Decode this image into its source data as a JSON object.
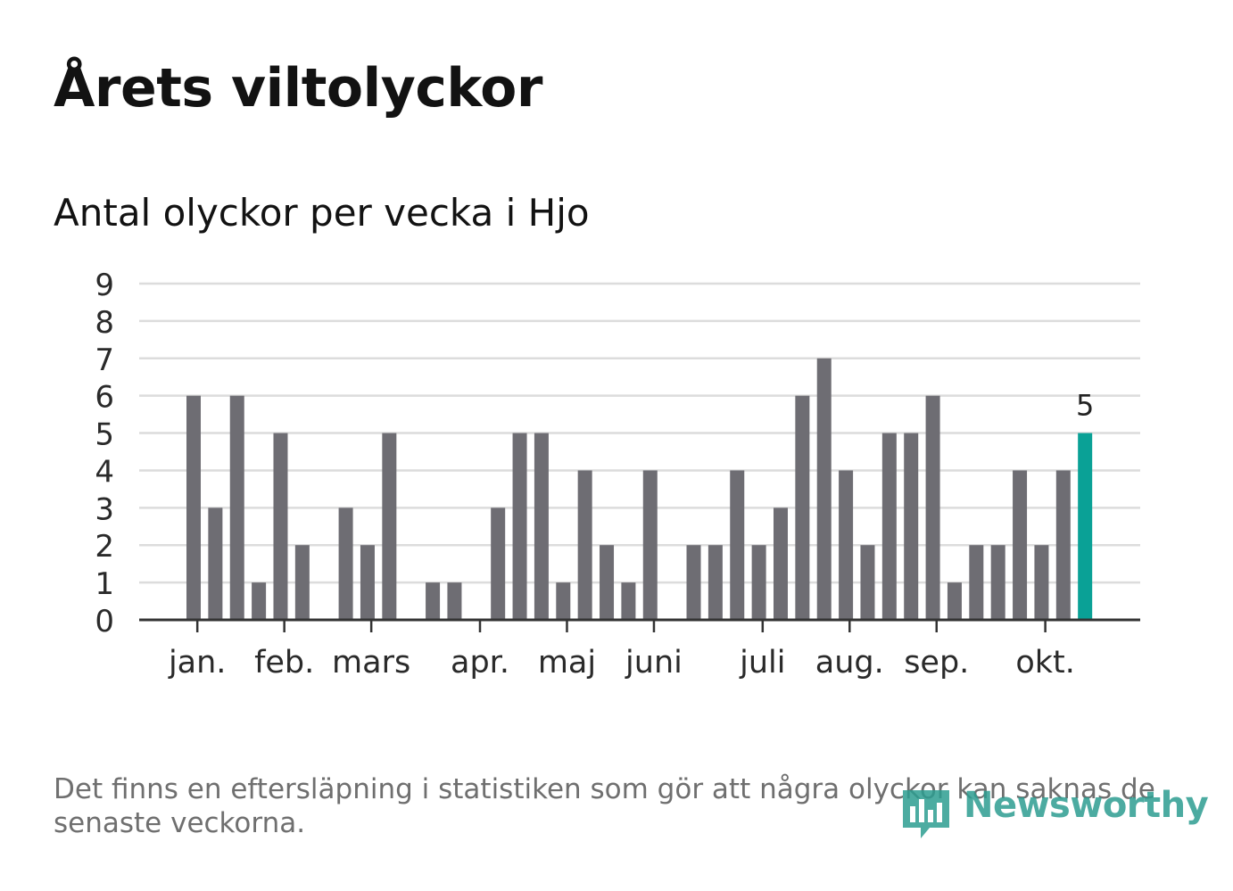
{
  "header": {
    "title": "Årets viltolyckor",
    "subtitle": "Antal olyckor per vecka i Hjo"
  },
  "chart_data": {
    "type": "bar",
    "title": "Årets viltolyckor",
    "subtitle": "Antal olyckor per vecka i Hjo",
    "xlabel": "",
    "ylabel": "",
    "ylim": [
      0,
      9
    ],
    "yticks": [
      0,
      1,
      2,
      3,
      4,
      5,
      6,
      7,
      8,
      9
    ],
    "grid": true,
    "bar_color": "#6e6d73",
    "highlight_color": "#0aa196",
    "highlight_index": 41,
    "highlight_label": "5",
    "values": [
      6,
      3,
      6,
      1,
      5,
      2,
      0,
      3,
      2,
      5,
      0,
      1,
      1,
      0,
      3,
      5,
      5,
      1,
      4,
      2,
      1,
      4,
      0,
      2,
      2,
      4,
      2,
      3,
      6,
      7,
      4,
      2,
      5,
      5,
      6,
      1,
      2,
      2,
      4,
      2,
      4,
      5
    ],
    "month_ticks": [
      {
        "label": "jan.",
        "week_pos": 0.5
      },
      {
        "label": "feb.",
        "week_pos": 4.5
      },
      {
        "label": "mars",
        "week_pos": 8.5
      },
      {
        "label": "apr.",
        "week_pos": 13.5
      },
      {
        "label": "maj",
        "week_pos": 17.5
      },
      {
        "label": "juni",
        "week_pos": 21.5
      },
      {
        "label": "juli",
        "week_pos": 26.5
      },
      {
        "label": "aug.",
        "week_pos": 30.5
      },
      {
        "label": "sep.",
        "week_pos": 34.5
      },
      {
        "label": "okt.",
        "week_pos": 39.5
      }
    ]
  },
  "footer": {
    "note": "Det finns en eftersläpning i statistiken som gör att några olyckor kan saknas de senaste veckorna.",
    "brand": "Newsworthy"
  },
  "colors": {
    "text": "#121212",
    "muted": "#6f6f6f",
    "grid": "#dcdcdc",
    "axis": "#333333",
    "brand": "#2d9d91"
  }
}
